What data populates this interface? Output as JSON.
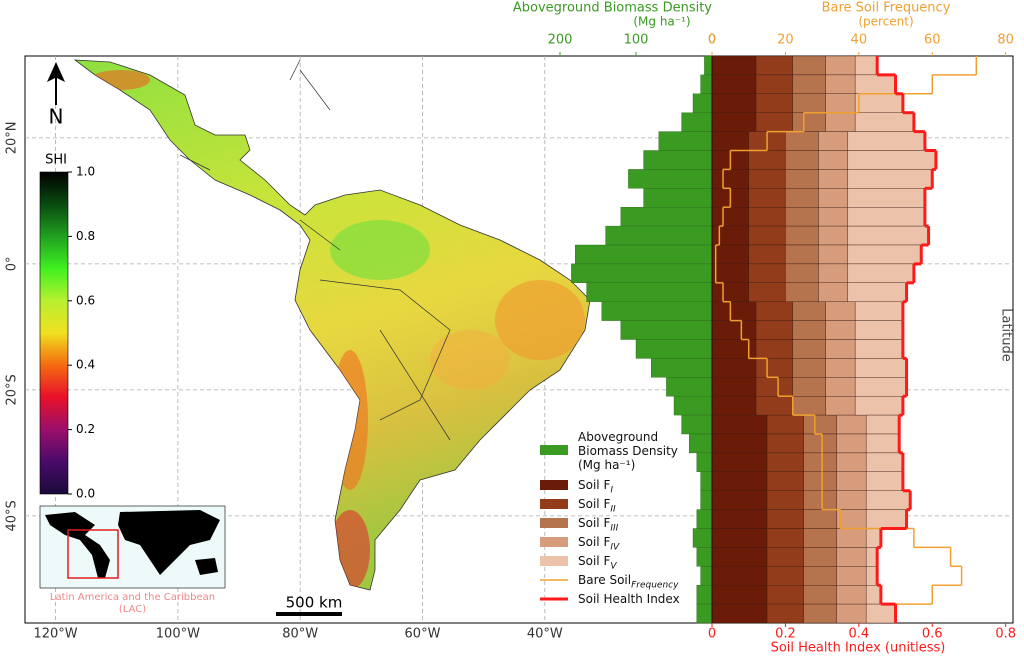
{
  "chart_data": {
    "type": "bar",
    "lat_bins": [
      33,
      30,
      27,
      24,
      21,
      18,
      15,
      12,
      9,
      6,
      3,
      0,
      -3,
      -6,
      -9,
      -12,
      -15,
      -18,
      -21,
      -24,
      -27,
      -30,
      -33,
      -36,
      -39,
      -42,
      -45,
      -48,
      -51,
      -54,
      -57
    ],
    "ylim": [
      -57,
      33
    ],
    "yticks": [
      {
        "value": 20,
        "label": "20°N"
      },
      {
        "value": 0,
        "label": "0°"
      },
      {
        "value": -20,
        "label": "20°S"
      },
      {
        "value": -40,
        "label": "40°S"
      }
    ],
    "grid": true,
    "y_label": "Latitude",
    "xlim": [
      0,
      0.82
    ],
    "xticks": [
      0,
      0.2,
      0.4,
      0.6,
      0.8
    ],
    "x_label": "Soil Health Index (unitless)",
    "x2lim": [
      0,
      250
    ],
    "x2ticks": [
      0,
      100,
      200
    ],
    "x2_label": "Aboveground Biomass Density",
    "x2_unit": "(Mg ha⁻¹)",
    "x3lim": [
      0,
      82
    ],
    "x3ticks": [
      0,
      20,
      40,
      60,
      80
    ],
    "x3_label": "Bare Soil Frequency",
    "x3_unit": "(percent)",
    "series": [
      {
        "name": "Aboveground Biomass Density (Mg ha⁻¹)",
        "color": "#3a9a22",
        "axis": "x2",
        "style": "bar",
        "values": [
          10,
          15,
          25,
          40,
          70,
          90,
          110,
          90,
          120,
          140,
          180,
          185,
          165,
          145,
          120,
          100,
          80,
          60,
          50,
          40,
          30,
          20,
          15,
          15,
          20,
          25,
          20,
          15,
          20,
          20
        ]
      },
      {
        "name": "Soil F",
        "subscript": "I",
        "color": "#6b1c08",
        "axis": "x",
        "style": "stack",
        "values": [
          0.12,
          0.12,
          0.12,
          0.12,
          0.1,
          0.1,
          0.1,
          0.1,
          0.1,
          0.1,
          0.1,
          0.1,
          0.1,
          0.12,
          0.12,
          0.12,
          0.12,
          0.12,
          0.12,
          0.15,
          0.15,
          0.15,
          0.15,
          0.15,
          0.15,
          0.15,
          0.15,
          0.15,
          0.15,
          0.15
        ]
      },
      {
        "name": "Soil F",
        "subscript": "II",
        "color": "#923c1c",
        "axis": "x",
        "style": "stack",
        "values": [
          0.1,
          0.1,
          0.1,
          0.1,
          0.1,
          0.1,
          0.1,
          0.1,
          0.1,
          0.1,
          0.1,
          0.1,
          0.1,
          0.1,
          0.1,
          0.1,
          0.1,
          0.1,
          0.1,
          0.1,
          0.1,
          0.1,
          0.1,
          0.1,
          0.1,
          0.1,
          0.1,
          0.1,
          0.1,
          0.1
        ]
      },
      {
        "name": "Soil F",
        "subscript": "III",
        "color": "#b5734e",
        "axis": "x",
        "style": "stack",
        "values": [
          0.09,
          0.09,
          0.09,
          0.09,
          0.09,
          0.09,
          0.09,
          0.09,
          0.09,
          0.09,
          0.09,
          0.09,
          0.09,
          0.09,
          0.09,
          0.09,
          0.09,
          0.09,
          0.09,
          0.09,
          0.09,
          0.09,
          0.09,
          0.09,
          0.09,
          0.09,
          0.09,
          0.09,
          0.09,
          0.09
        ]
      },
      {
        "name": "Soil F",
        "subscript": "IV",
        "color": "#d69c7c",
        "axis": "x",
        "style": "stack",
        "values": [
          0.08,
          0.08,
          0.08,
          0.08,
          0.08,
          0.08,
          0.08,
          0.08,
          0.08,
          0.08,
          0.08,
          0.08,
          0.08,
          0.08,
          0.08,
          0.08,
          0.08,
          0.08,
          0.08,
          0.08,
          0.08,
          0.08,
          0.08,
          0.08,
          0.08,
          0.08,
          0.08,
          0.08,
          0.08,
          0.08
        ]
      },
      {
        "name": "Soil F",
        "subscript": "V",
        "color": "#ecc3aa",
        "axis": "x",
        "style": "stack",
        "values": [
          0.06,
          0.11,
          0.13,
          0.16,
          0.21,
          0.24,
          0.23,
          0.21,
          0.21,
          0.22,
          0.2,
          0.18,
          0.16,
          0.13,
          0.13,
          0.13,
          0.14,
          0.14,
          0.13,
          0.09,
          0.09,
          0.1,
          0.1,
          0.12,
          0.11,
          0.04,
          0.03,
          0.03,
          0.04,
          0.08
        ]
      },
      {
        "name": "Bare Soil",
        "subscript": "Frequency",
        "color": "#f0a030",
        "axis": "x3",
        "style": "step",
        "values": [
          72,
          60,
          40,
          25,
          15,
          5,
          3,
          5,
          3,
          2,
          1,
          1,
          3,
          5,
          8,
          10,
          15,
          18,
          22,
          28,
          30,
          30,
          30,
          30,
          35,
          55,
          65,
          68,
          60,
          50
        ]
      },
      {
        "name": "Soil Health Index",
        "color": "#ff1a1a",
        "axis": "x",
        "style": "step",
        "values": [
          0.45,
          0.5,
          0.52,
          0.55,
          0.58,
          0.61,
          0.6,
          0.58,
          0.58,
          0.59,
          0.57,
          0.55,
          0.53,
          0.52,
          0.52,
          0.52,
          0.53,
          0.53,
          0.52,
          0.51,
          0.51,
          0.52,
          0.52,
          0.54,
          0.53,
          0.46,
          0.45,
          0.45,
          0.46,
          0.5
        ]
      }
    ],
    "map": {
      "xlim": [
        -125,
        -13
      ],
      "xticks": [
        {
          "value": -120,
          "label": "120°W"
        },
        {
          "value": -100,
          "label": "100°W"
        },
        {
          "value": -80,
          "label": "80°W"
        },
        {
          "value": -60,
          "label": "60°W"
        },
        {
          "value": -40,
          "label": "40°W"
        }
      ],
      "north": "N",
      "scale_bar": "500 km",
      "inset_label": "Latin America and the Caribbean (LAC)",
      "colorbar": {
        "label": "SHI",
        "lim": [
          0,
          1
        ],
        "ticks": [
          {
            "value": 0,
            "label": "0.0"
          },
          {
            "value": 0.2,
            "label": "0.2"
          },
          {
            "value": 0.4,
            "label": "0.4"
          },
          {
            "value": 0.6,
            "label": "0.6"
          },
          {
            "value": 0.8,
            "label": "0.8"
          },
          {
            "value": 1,
            "label": "1.0"
          }
        ]
      }
    }
  }
}
